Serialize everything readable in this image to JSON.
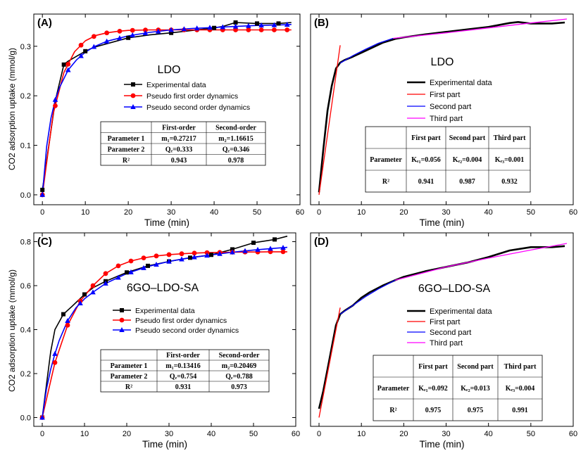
{
  "figure": {
    "shared_ylabel": "CO2 adsorption uptake (mmol/g)"
  },
  "chart_data": [
    {
      "panel": "(A)",
      "type": "line",
      "title": "LDO",
      "xlabel": "Time (min)",
      "ylabel": "CO2 adsorption uptake (mmol/g)",
      "xlim": [
        -2,
        60
      ],
      "ylim": [
        -0.02,
        0.365
      ],
      "xticks": [
        0,
        10,
        20,
        30,
        40,
        50,
        60
      ],
      "yticks": [
        0.0,
        0.1,
        0.2,
        0.3
      ],
      "ytick_labels": [
        "0.0",
        "0.1",
        "0.2",
        "0.3"
      ],
      "legend": "center-right",
      "series": [
        {
          "name": "Experimental data",
          "color": "#000000",
          "marker": "square",
          "x": [
            0,
            3,
            5,
            6,
            8,
            10,
            12,
            15,
            20,
            25,
            30,
            35,
            40,
            42,
            45,
            50,
            55,
            58
          ],
          "y": [
            0.01,
            0.19,
            0.263,
            0.27,
            0.28,
            0.29,
            0.298,
            0.305,
            0.317,
            0.323,
            0.327,
            0.332,
            0.337,
            0.34,
            0.348,
            0.346,
            0.346,
            0.348
          ],
          "marker_x": [
            0,
            5,
            10,
            20,
            30,
            40,
            45,
            50,
            55
          ]
        },
        {
          "name": "Pseudo first order dynamics",
          "color": "#ff0000",
          "marker": "circle",
          "x": [
            0,
            2.5,
            5,
            7.5,
            10,
            12.5,
            15,
            17.5,
            20,
            25,
            30,
            35,
            40,
            45,
            50,
            55,
            58
          ],
          "y": [
            0,
            0.163,
            0.247,
            0.289,
            0.311,
            0.322,
            0.327,
            0.33,
            0.332,
            0.333,
            0.333,
            0.333,
            0.333,
            0.333,
            0.333,
            0.333,
            0.333
          ],
          "marker_x": [
            0,
            3,
            6,
            9,
            12,
            15,
            18,
            21,
            24,
            27,
            30,
            33,
            36,
            39,
            42,
            45,
            48,
            51,
            54,
            57
          ]
        },
        {
          "name": "Pseudo second order dynamics",
          "color": "#0000ff",
          "marker": "triangle",
          "x": [
            0,
            1,
            2,
            3,
            4,
            6,
            8,
            10,
            12,
            15,
            20,
            25,
            30,
            35,
            40,
            45,
            50,
            55,
            58
          ],
          "y": [
            0,
            0.098,
            0.155,
            0.192,
            0.217,
            0.252,
            0.273,
            0.288,
            0.299,
            0.31,
            0.321,
            0.328,
            0.333,
            0.336,
            0.338,
            0.34,
            0.342,
            0.343,
            0.344
          ],
          "marker_x": [
            0,
            3,
            6,
            9,
            12,
            15,
            18,
            21,
            24,
            27,
            30,
            33,
            36,
            39,
            42,
            45,
            48,
            51,
            54,
            57
          ]
        }
      ],
      "table": {
        "header": [
          "",
          "First-order",
          "Second-order"
        ],
        "rows": [
          [
            "Parameter 1",
            "m₁=0.27217",
            "m₂=1.16615"
          ],
          [
            "Parameter 2",
            "Qₑ=0.333",
            "Qₑ=0.346"
          ],
          [
            "R²",
            "0.943",
            "0.978"
          ]
        ]
      }
    },
    {
      "panel": "(B)",
      "type": "line",
      "title": "LDO",
      "xlabel": "Time (min)",
      "ylabel": "",
      "xlim": [
        -2,
        60
      ],
      "ylim": [
        -0.02,
        0.365
      ],
      "xticks": [
        0,
        10,
        20,
        30,
        40,
        50,
        60
      ],
      "yticks": [],
      "ytick_labels": [],
      "legend": "center-right",
      "series": [
        {
          "name": "Experimental data",
          "color": "#000000",
          "width": 2.6,
          "x": [
            0,
            1,
            2,
            3,
            4,
            5,
            6,
            8,
            10,
            12,
            15,
            18,
            20,
            25,
            30,
            35,
            40,
            45,
            47,
            50,
            55,
            58
          ],
          "y": [
            0.005,
            0.09,
            0.17,
            0.22,
            0.255,
            0.267,
            0.272,
            0.279,
            0.287,
            0.295,
            0.307,
            0.315,
            0.318,
            0.324,
            0.329,
            0.334,
            0.339,
            0.347,
            0.349,
            0.346,
            0.346,
            0.348
          ]
        },
        {
          "name": "First part",
          "color": "#ff0000",
          "width": 1.3,
          "x": [
            0,
            5
          ],
          "y": [
            0.0,
            0.302
          ]
        },
        {
          "name": "Second part",
          "color": "#0000ff",
          "width": 1.3,
          "x": [
            5,
            8,
            11,
            14,
            17.5
          ],
          "y": [
            0.266,
            0.281,
            0.294,
            0.306,
            0.316
          ]
        },
        {
          "name": "Third part",
          "color": "#ff00ff",
          "width": 1.3,
          "x": [
            17.5,
            30,
            40,
            50,
            58.5
          ],
          "y": [
            0.316,
            0.327,
            0.337,
            0.347,
            0.355
          ]
        }
      ],
      "table": {
        "header": [
          "",
          "First part",
          "Second part",
          "Third part"
        ],
        "rows": [
          [
            "Parameter",
            "Kₑ₁=0.056",
            "Kₑ₂=0.004",
            "Kₑ₃=0.001"
          ],
          [
            "R²",
            "0.941",
            "0.987",
            "0.932"
          ]
        ]
      }
    },
    {
      "panel": "(C)",
      "type": "line",
      "title": "6GO–LDO-SA",
      "xlabel": "Time (min)",
      "ylabel": "CO2 adsorption uptake (mmol/g)",
      "xlim": [
        -2,
        60
      ],
      "ylim": [
        -0.04,
        0.84
      ],
      "xticks": [
        0,
        10,
        20,
        30,
        40,
        50,
        60
      ],
      "yticks": [
        0.0,
        0.2,
        0.4,
        0.6,
        0.8
      ],
      "ytick_labels": [
        "0.0",
        "0.2",
        "0.4",
        "0.6",
        "0.8"
      ],
      "legend": "center-right",
      "series": [
        {
          "name": "Experimental data",
          "color": "#000000",
          "marker": "square",
          "x": [
            0,
            2,
            3,
            5,
            7,
            10,
            12,
            15,
            20,
            25,
            30,
            35,
            40,
            45,
            50,
            55,
            58
          ],
          "y": [
            0,
            0.3,
            0.4,
            0.47,
            0.505,
            0.56,
            0.59,
            0.62,
            0.66,
            0.69,
            0.71,
            0.727,
            0.74,
            0.765,
            0.795,
            0.81,
            0.825
          ],
          "marker_x": [
            0,
            5,
            10,
            15,
            20,
            25,
            30,
            35,
            40,
            45,
            50,
            55
          ]
        },
        {
          "name": "Pseudo first order dynamics",
          "color": "#ff0000",
          "marker": "circle",
          "x": [
            0,
            3,
            6,
            9,
            12,
            15,
            18,
            21,
            24,
            27,
            30,
            33,
            36,
            39,
            42,
            45,
            48,
            51,
            54,
            57,
            58
          ],
          "y": [
            0,
            0.25,
            0.42,
            0.53,
            0.6,
            0.655,
            0.69,
            0.712,
            0.726,
            0.735,
            0.741,
            0.745,
            0.748,
            0.75,
            0.751,
            0.752,
            0.753,
            0.753,
            0.754,
            0.754,
            0.754
          ],
          "marker_x": [
            0,
            3,
            6,
            9,
            12,
            15,
            18,
            21,
            24,
            27,
            30,
            33,
            36,
            39,
            42,
            45,
            48,
            51,
            54,
            57
          ]
        },
        {
          "name": "Pseudo second order dynamics",
          "color": "#0000ff",
          "marker": "triangle",
          "x": [
            0,
            1,
            2,
            3,
            4,
            6,
            8,
            10,
            12,
            15,
            20,
            25,
            30,
            35,
            40,
            45,
            50,
            55,
            58
          ],
          "y": [
            0,
            0.13,
            0.22,
            0.29,
            0.35,
            0.44,
            0.5,
            0.54,
            0.57,
            0.61,
            0.655,
            0.687,
            0.71,
            0.727,
            0.74,
            0.752,
            0.762,
            0.77,
            0.774
          ],
          "marker_x": [
            0,
            3,
            6,
            9,
            12,
            15,
            18,
            21,
            24,
            27,
            30,
            33,
            36,
            39,
            42,
            45,
            48,
            51,
            54,
            57
          ]
        }
      ],
      "table": {
        "header": [
          "",
          "First-order",
          "Second-order"
        ],
        "rows": [
          [
            "Parameter 1",
            "m₁=0.13416",
            "m₂=0.20469"
          ],
          [
            "Parameter 2",
            "Qₑ=0.754",
            "Qₑ=0.788"
          ],
          [
            "R²",
            "0.931",
            "0.973"
          ]
        ]
      }
    },
    {
      "panel": "(D)",
      "type": "line",
      "title": "6GO–LDO-SA",
      "xlabel": "Time (min)",
      "ylabel": "",
      "xlim": [
        -2,
        60
      ],
      "ylim": [
        -0.04,
        0.84
      ],
      "xticks": [
        0,
        10,
        20,
        30,
        40,
        50,
        60
      ],
      "yticks": [],
      "ytick_labels": [],
      "legend": "center-right",
      "series": [
        {
          "name": "Experimental data",
          "color": "#000000",
          "width": 2.6,
          "x": [
            0,
            1,
            2,
            3,
            4,
            5,
            6,
            8,
            10,
            12,
            15,
            18,
            20,
            25,
            30,
            35,
            40,
            45,
            50,
            55,
            58
          ],
          "y": [
            0.04,
            0.12,
            0.22,
            0.32,
            0.42,
            0.47,
            0.485,
            0.51,
            0.545,
            0.57,
            0.6,
            0.625,
            0.64,
            0.665,
            0.685,
            0.705,
            0.73,
            0.76,
            0.775,
            0.775,
            0.78
          ]
        },
        {
          "name": "First part",
          "color": "#ff0000",
          "width": 1.3,
          "x": [
            0,
            5
          ],
          "y": [
            0.0,
            0.5
          ]
        },
        {
          "name": "Second part",
          "color": "#0000ff",
          "width": 1.3,
          "x": [
            5,
            8,
            11,
            14,
            18
          ],
          "y": [
            0.47,
            0.51,
            0.55,
            0.585,
            0.625
          ]
        },
        {
          "name": "Third part",
          "color": "#ff00ff",
          "width": 1.3,
          "x": [
            18,
            30,
            40,
            50,
            58.5
          ],
          "y": [
            0.625,
            0.685,
            0.725,
            0.762,
            0.792
          ]
        }
      ],
      "table": {
        "header": [
          "",
          "First part",
          "Second part",
          "Third part"
        ],
        "rows": [
          [
            "Parameter",
            "Kₑ₁=0.092",
            "Kₑ₂=0.013",
            "Kₑ₃=0.004"
          ],
          [
            "R²",
            "0.975",
            "0.975",
            "0.991"
          ]
        ]
      }
    }
  ]
}
